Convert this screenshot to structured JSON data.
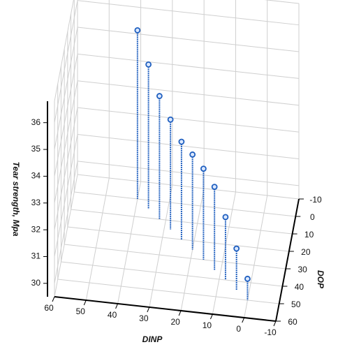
{
  "chart_data": {
    "type": "scatter3d",
    "xlabel": "DINP",
    "ylabel": "DOP",
    "zlabel": "Tear strength, Mpa",
    "x": [
      40,
      36,
      32,
      28,
      24,
      20,
      16,
      12,
      8,
      4,
      0
    ],
    "y": [
      0,
      5,
      10,
      15,
      20,
      25,
      30,
      35,
      40,
      45,
      50
    ],
    "z": [
      35.8,
      34.9,
      34.1,
      33.6,
      33.15,
      33.05,
      32.9,
      32.6,
      31.85,
      31.05,
      30.3
    ],
    "color": "#1f5fbf",
    "xlim": [
      -10,
      60
    ],
    "xticks": [
      60,
      50,
      40,
      30,
      20,
      10,
      0,
      -10
    ],
    "ylim": [
      -10,
      60
    ],
    "yticks": [
      -10,
      0,
      10,
      20,
      30,
      40,
      50,
      60
    ],
    "zlim": [
      29.5,
      36.8
    ],
    "zticks": [
      30,
      31,
      32,
      33,
      34,
      35,
      36
    ],
    "grid": true
  }
}
